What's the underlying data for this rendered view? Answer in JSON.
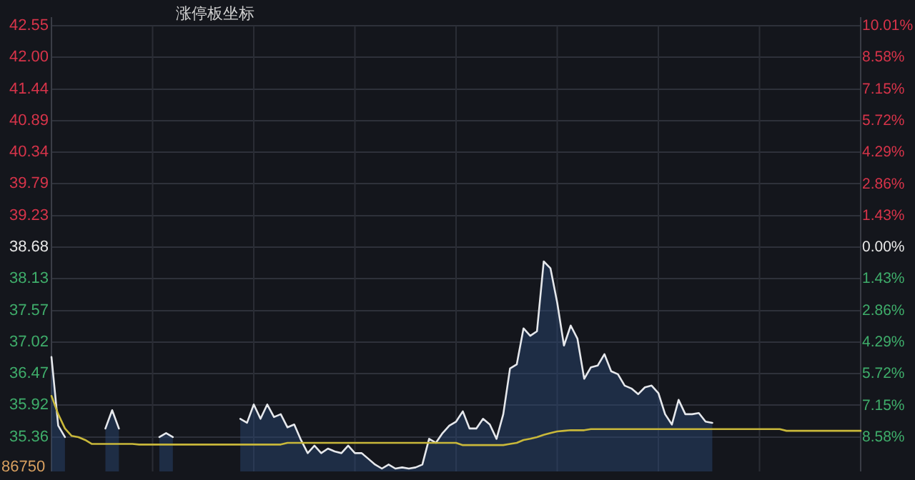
{
  "chart_data": {
    "type": "line",
    "title": "涨停板坐标",
    "categories": [
      null,
      null,
      null,
      null,
      null,
      null,
      null,
      null,
      null,
      null,
      null,
      null,
      null,
      null,
      null,
      null,
      null,
      null,
      null,
      null,
      null,
      null,
      null,
      null,
      null,
      null,
      null,
      null,
      null,
      null,
      null,
      null,
      null,
      null,
      null,
      null,
      null,
      null,
      null,
      null,
      null,
      null,
      null,
      null,
      null,
      null,
      null,
      null,
      null,
      null,
      null,
      null,
      null,
      null,
      null,
      null,
      null,
      null,
      null,
      null,
      null,
      null,
      null,
      null,
      null,
      null,
      null,
      null,
      null,
      null,
      null,
      null,
      null,
      null,
      null,
      null,
      null,
      null,
      null,
      null,
      null,
      null,
      null,
      null,
      null,
      null,
      null,
      null,
      null,
      null,
      null,
      null,
      null,
      null,
      null,
      null,
      null,
      null,
      null,
      null,
      null,
      null,
      null,
      null,
      null,
      null,
      null,
      null,
      null,
      null,
      null,
      null,
      null,
      null,
      null,
      null,
      null,
      null,
      null,
      null,
      null
    ],
    "series": [
      {
        "type": "area",
        "color": "#e6e8ec",
        "values": [
          36.76,
          35.56,
          35.36,
          null,
          null,
          null,
          null,
          null,
          35.51,
          35.83,
          35.51,
          null,
          null,
          null,
          null,
          null,
          35.36,
          35.43,
          35.36,
          null,
          null,
          null,
          null,
          null,
          null,
          null,
          null,
          null,
          35.68,
          35.61,
          35.93,
          35.68,
          35.93,
          35.71,
          35.76,
          35.53,
          35.58,
          35.31,
          35.08,
          35.21,
          35.08,
          35.16,
          35.11,
          35.08,
          35.21,
          35.08,
          35.08,
          34.98,
          34.88,
          34.81,
          34.88,
          34.81,
          34.83,
          34.81,
          34.83,
          34.88,
          35.33,
          35.26,
          35.43,
          35.56,
          35.63,
          35.81,
          35.51,
          35.51,
          35.68,
          35.58,
          35.33,
          35.76,
          36.56,
          36.63,
          37.26,
          37.13,
          37.21,
          38.43,
          38.31,
          37.71,
          36.96,
          37.31,
          37.08,
          36.38,
          36.58,
          36.61,
          36.81,
          36.51,
          36.46,
          36.26,
          36.21,
          36.11,
          36.23,
          36.26,
          36.13,
          35.76,
          35.58,
          36.01,
          35.76,
          35.76,
          35.78,
          35.63,
          35.61,
          null,
          null,
          null,
          null,
          null,
          null,
          null,
          null,
          null,
          null,
          null,
          null,
          null,
          null,
          null,
          null,
          null,
          null,
          null,
          null,
          null,
          null
        ]
      },
      {
        "color": "#c9b83a",
        "values": [
          36.08,
          35.76,
          35.51,
          35.38,
          35.36,
          35.31,
          35.24,
          35.24,
          35.24,
          35.24,
          35.24,
          35.24,
          35.24,
          35.23,
          35.23,
          35.23,
          35.23,
          35.23,
          35.23,
          35.23,
          35.23,
          35.23,
          35.23,
          35.23,
          35.23,
          35.23,
          35.23,
          35.23,
          35.23,
          35.23,
          35.23,
          35.23,
          35.23,
          35.23,
          35.23,
          35.26,
          35.26,
          35.26,
          35.26,
          35.26,
          35.26,
          35.26,
          35.26,
          35.26,
          35.26,
          35.26,
          35.26,
          35.26,
          35.26,
          35.26,
          35.26,
          35.26,
          35.26,
          35.26,
          35.26,
          35.26,
          35.26,
          35.26,
          35.26,
          35.26,
          35.26,
          35.22,
          35.22,
          35.22,
          35.22,
          35.22,
          35.22,
          35.22,
          35.24,
          35.26,
          35.31,
          35.33,
          35.36,
          35.4,
          35.43,
          35.46,
          35.47,
          35.48,
          35.48,
          35.48,
          35.5,
          35.5,
          35.5,
          35.5,
          35.5,
          35.5,
          35.5,
          35.5,
          35.5,
          35.5,
          35.5,
          35.5,
          35.5,
          35.5,
          35.5,
          35.5,
          35.5,
          35.5,
          35.5,
          35.5,
          35.5,
          35.5,
          35.5,
          35.5,
          35.5,
          35.5,
          35.5,
          35.5,
          35.5,
          35.47,
          35.47,
          35.47,
          35.47,
          35.47,
          35.47,
          35.47,
          35.47,
          35.47,
          35.47,
          35.47,
          35.47
        ]
      }
    ],
    "ylim": [
      34.76,
      42.55
    ],
    "yticks": [
      42.55,
      {
        "value": 42,
        "label": "42.00"
      },
      41.44,
      40.89,
      40.34,
      39.79,
      39.23,
      38.68,
      38.13,
      37.57,
      37.02,
      36.47,
      35.92,
      35.36
    ],
    "y2lim": [
      -10.13,
      10.01
    ],
    "y2ticks": [
      {
        "value": 10.01,
        "label": "10.01%"
      },
      {
        "value": 8.58,
        "label": "8.58%"
      },
      {
        "value": 7.15,
        "label": "7.15%"
      },
      {
        "value": 5.72,
        "label": "5.72%"
      },
      {
        "value": 4.29,
        "label": "4.29%"
      },
      {
        "value": 2.86,
        "label": "2.86%"
      },
      {
        "value": 1.43,
        "label": "1.43%"
      },
      {
        "value": 0,
        "label": "0.00%"
      },
      {
        "value": -1.43,
        "label": "1.43%"
      },
      {
        "value": -2.86,
        "label": "2.86%"
      },
      {
        "value": -4.29,
        "label": "4.29%"
      },
      {
        "value": -5.72,
        "label": "5.72%"
      },
      {
        "value": -7.15,
        "label": "7.15%"
      },
      {
        "value": -8.58,
        "label": "8.58%"
      }
    ],
    "grid": true,
    "annotations": [
      "86750"
    ]
  }
}
